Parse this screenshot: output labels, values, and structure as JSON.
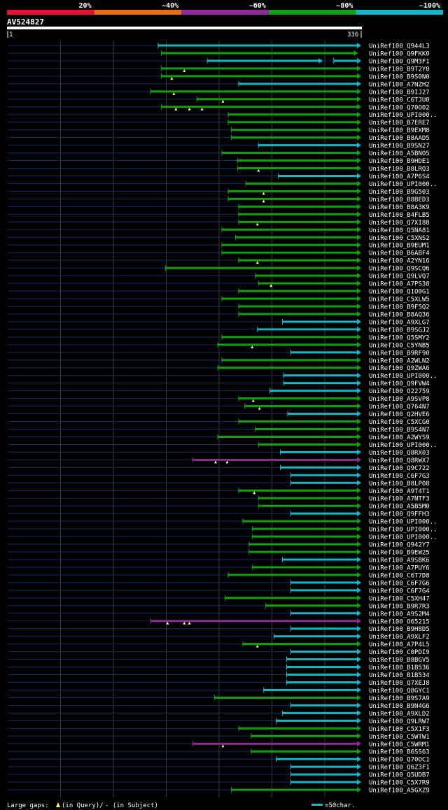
{
  "query": {
    "name": "AV524827",
    "start": "1",
    "end": "336",
    "length": 336
  },
  "legend_scale": [
    {
      "label": "20%",
      "color": "#e8112d"
    },
    {
      "label": "~40%",
      "color": "#e86d12"
    },
    {
      "label": "~60%",
      "color": "#8f2a9b"
    },
    {
      "label": "~80%",
      "color": "#11a012"
    },
    {
      "label": "~100%",
      "color": "#12b6c6"
    }
  ],
  "footer": {
    "gaps_label": "Large gaps:",
    "in_query": "(in Query)/",
    "in_subject": "- (in Subject)",
    "scale_label": "=50char."
  },
  "colors": {
    "green": "#11a012",
    "cyan": "#12b6c6",
    "purple": "#8f2a9b",
    "dim": "#1a2a66",
    "marker": "#ffff66"
  },
  "chart_data": {
    "type": "alignment-overview",
    "x_range": [
      1,
      336
    ],
    "hits": [
      {
        "name": "UniRef100_Q944L3",
        "start": 145,
        "end": 336,
        "color": "cyan",
        "gaps": []
      },
      {
        "name": "UniRef100_Q9FKK0",
        "start": 148,
        "end": 333,
        "color": "green",
        "gaps": []
      },
      {
        "name": "UniRef100_Q9M3F1",
        "start": 192,
        "end": 336,
        "color": "cyan",
        "gaps": [],
        "breaks": [
          [
            302,
            313
          ]
        ]
      },
      {
        "name": "UniRef100_B9T2Y0",
        "start": 148,
        "end": 336,
        "color": "green",
        "gaps": [
          170
        ]
      },
      {
        "name": "UniRef100_B9S0N0",
        "start": 148,
        "end": 336,
        "color": "green",
        "gaps": [
          158
        ]
      },
      {
        "name": "UniRef100_A7NZH2",
        "start": 222,
        "end": 336,
        "color": "cyan",
        "gaps": []
      },
      {
        "name": "UniRef100_B9IJ27",
        "start": 138,
        "end": 336,
        "color": "green",
        "gaps": [
          160
        ]
      },
      {
        "name": "UniRef100_C6TJU0",
        "start": 182,
        "end": 336,
        "color": "green",
        "gaps": [
          207
        ]
      },
      {
        "name": "UniRef100_Q70O02",
        "start": 148,
        "end": 336,
        "color": "green",
        "gaps": [
          162,
          175,
          187
        ]
      },
      {
        "name": "UniRef100_UPI000..",
        "start": 212,
        "end": 336,
        "color": "green",
        "gaps": []
      },
      {
        "name": "UniRef100_B7ERE7",
        "start": 212,
        "end": 336,
        "color": "green",
        "gaps": []
      },
      {
        "name": "UniRef100_B9EXM8",
        "start": 215,
        "end": 336,
        "color": "green",
        "gaps": []
      },
      {
        "name": "UniRef100_B8AAD5",
        "start": 215,
        "end": 336,
        "color": "green",
        "gaps": []
      },
      {
        "name": "UniRef100_B9SN27",
        "start": 241,
        "end": 336,
        "color": "cyan",
        "gaps": []
      },
      {
        "name": "UniRef100_A5BNO5",
        "start": 206,
        "end": 336,
        "color": "green",
        "gaps": []
      },
      {
        "name": "UniRef100_B9HDE1",
        "start": 221,
        "end": 336,
        "color": "green",
        "gaps": []
      },
      {
        "name": "UniRef100_B8LRQ3",
        "start": 221,
        "end": 336,
        "color": "green",
        "gaps": [
          241
        ]
      },
      {
        "name": "UniRef100_A7P6S4",
        "start": 260,
        "end": 336,
        "color": "cyan",
        "gaps": []
      },
      {
        "name": "UniRef100_UPI000..",
        "start": 229,
        "end": 336,
        "color": "green",
        "gaps": []
      },
      {
        "name": "UniRef100_B9G503",
        "start": 212,
        "end": 336,
        "color": "green",
        "gaps": [
          246
        ]
      },
      {
        "name": "UniRef100_B8BED3",
        "start": 212,
        "end": 336,
        "color": "green",
        "gaps": [
          246
        ]
      },
      {
        "name": "UniRef100_B8A3K9",
        "start": 222,
        "end": 336,
        "color": "green",
        "gaps": []
      },
      {
        "name": "UniRef100_B4FLB5",
        "start": 222,
        "end": 336,
        "color": "green",
        "gaps": []
      },
      {
        "name": "UniRef100_Q7XI88",
        "start": 222,
        "end": 336,
        "color": "green",
        "gaps": [
          240
        ]
      },
      {
        "name": "UniRef100_Q5NA81",
        "start": 206,
        "end": 336,
        "color": "green",
        "gaps": []
      },
      {
        "name": "UniRef100_C5XNS2",
        "start": 219,
        "end": 336,
        "color": "green",
        "gaps": []
      },
      {
        "name": "UniRef100_B9EUM1",
        "start": 206,
        "end": 336,
        "color": "green",
        "gaps": []
      },
      {
        "name": "UniRef100_B6ABF4",
        "start": 206,
        "end": 336,
        "color": "green",
        "gaps": []
      },
      {
        "name": "UniRef100_A2YN16",
        "start": 222,
        "end": 336,
        "color": "green",
        "gaps": [
          240
        ]
      },
      {
        "name": "UniRef100_Q9SCQ6",
        "start": 152,
        "end": 336,
        "color": "green",
        "gaps": []
      },
      {
        "name": "UniRef100_Q9LVQ7",
        "start": 238,
        "end": 336,
        "color": "green",
        "gaps": []
      },
      {
        "name": "UniRef100_A7PS38",
        "start": 241,
        "end": 336,
        "color": "green",
        "gaps": [
          253
        ]
      },
      {
        "name": "UniRef100_Q1O0G1",
        "start": 222,
        "end": 336,
        "color": "green",
        "gaps": []
      },
      {
        "name": "UniRef100_C5XLW5",
        "start": 206,
        "end": 336,
        "color": "green",
        "gaps": []
      },
      {
        "name": "UniRef100_B9F5Q2",
        "start": 222,
        "end": 336,
        "color": "green",
        "gaps": []
      },
      {
        "name": "UniRef100_B8AQ36",
        "start": 222,
        "end": 336,
        "color": "green",
        "gaps": []
      },
      {
        "name": "UniRef100_A9XLG7",
        "start": 264,
        "end": 336,
        "color": "cyan",
        "gaps": []
      },
      {
        "name": "UniRef100_B9SGJ2",
        "start": 240,
        "end": 336,
        "color": "cyan",
        "gaps": []
      },
      {
        "name": "UniRef100_Q5SMY2",
        "start": 206,
        "end": 336,
        "color": "green",
        "gaps": []
      },
      {
        "name": "UniRef100_C5YNB5",
        "start": 202,
        "end": 336,
        "color": "green",
        "gaps": [
          235
        ]
      },
      {
        "name": "UniRef100_B9RF90",
        "start": 272,
        "end": 336,
        "color": "cyan",
        "gaps": []
      },
      {
        "name": "UniRef100_A2WLN2",
        "start": 206,
        "end": 336,
        "color": "green",
        "gaps": []
      },
      {
        "name": "UniRef100_Q9ZWA6",
        "start": 202,
        "end": 336,
        "color": "green",
        "gaps": []
      },
      {
        "name": "UniRef100_UPI000..",
        "start": 265,
        "end": 336,
        "color": "cyan",
        "gaps": []
      },
      {
        "name": "UniRef100_Q9FVW4",
        "start": 265,
        "end": 336,
        "color": "cyan",
        "gaps": []
      },
      {
        "name": "UniRef100_O22759",
        "start": 252,
        "end": 336,
        "color": "cyan",
        "gaps": []
      },
      {
        "name": "UniRef100_A9SVP8",
        "start": 222,
        "end": 336,
        "color": "green",
        "gaps": [
          236
        ]
      },
      {
        "name": "UniRef100_Q764N7",
        "start": 228,
        "end": 336,
        "color": "green",
        "gaps": [
          242
        ]
      },
      {
        "name": "UniRef100_Q2HVE6",
        "start": 269,
        "end": 336,
        "color": "cyan",
        "gaps": []
      },
      {
        "name": "UniRef100_C5XCG0",
        "start": 222,
        "end": 336,
        "color": "green",
        "gaps": []
      },
      {
        "name": "UniRef100_B9S4N7",
        "start": 238,
        "end": 336,
        "color": "green",
        "gaps": []
      },
      {
        "name": "UniRef100_A2WYS9",
        "start": 202,
        "end": 336,
        "color": "green",
        "gaps": []
      },
      {
        "name": "UniRef100_UPI000..",
        "start": 241,
        "end": 336,
        "color": "green",
        "gaps": []
      },
      {
        "name": "UniRef100_Q8RX03",
        "start": 262,
        "end": 336,
        "color": "cyan",
        "gaps": []
      },
      {
        "name": "UniRef100_Q8RWX7",
        "start": 178,
        "end": 336,
        "color": "purple",
        "gaps": [
          200,
          211
        ]
      },
      {
        "name": "UniRef100_Q9C722",
        "start": 262,
        "end": 336,
        "color": "cyan",
        "gaps": []
      },
      {
        "name": "UniRef100_C6F7G3",
        "start": 272,
        "end": 336,
        "color": "cyan",
        "gaps": []
      },
      {
        "name": "UniRef100_B8LP08",
        "start": 272,
        "end": 336,
        "color": "cyan",
        "gaps": []
      },
      {
        "name": "UniRef100_A9T4T1",
        "start": 222,
        "end": 336,
        "color": "green",
        "gaps": [
          237
        ]
      },
      {
        "name": "UniRef100_A7NTF3",
        "start": 241,
        "end": 336,
        "color": "green",
        "gaps": []
      },
      {
        "name": "UniRef100_A5B5M0",
        "start": 241,
        "end": 336,
        "color": "green",
        "gaps": []
      },
      {
        "name": "UniRef100_Q9FFH3",
        "start": 272,
        "end": 336,
        "color": "cyan",
        "gaps": []
      },
      {
        "name": "UniRef100_UPI000..",
        "start": 226,
        "end": 336,
        "color": "green",
        "gaps": []
      },
      {
        "name": "UniRef100_UPI000..",
        "start": 235,
        "end": 336,
        "color": "green",
        "gaps": []
      },
      {
        "name": "UniRef100_UPI000..",
        "start": 235,
        "end": 336,
        "color": "green",
        "gaps": []
      },
      {
        "name": "UniRef100_Q942Y7",
        "start": 232,
        "end": 336,
        "color": "green",
        "gaps": []
      },
      {
        "name": "UniRef100_B9EW25",
        "start": 232,
        "end": 336,
        "color": "green",
        "gaps": []
      },
      {
        "name": "UniRef100_A9SBK6",
        "start": 264,
        "end": 336,
        "color": "cyan",
        "gaps": []
      },
      {
        "name": "UniRef100_A7PUY6",
        "start": 235,
        "end": 336,
        "color": "green",
        "gaps": []
      },
      {
        "name": "UniRef100_C6T7D8",
        "start": 212,
        "end": 336,
        "color": "green",
        "gaps": []
      },
      {
        "name": "UniRef100_C6F7G6",
        "start": 272,
        "end": 336,
        "color": "cyan",
        "gaps": []
      },
      {
        "name": "UniRef100_C6F7G4",
        "start": 272,
        "end": 336,
        "color": "cyan",
        "gaps": []
      },
      {
        "name": "UniRef100_C5XH47",
        "start": 209,
        "end": 336,
        "color": "green",
        "gaps": []
      },
      {
        "name": "UniRef100_B9R7R3",
        "start": 248,
        "end": 336,
        "color": "green",
        "gaps": []
      },
      {
        "name": "UniRef100_A9S2M4",
        "start": 272,
        "end": 336,
        "color": "cyan",
        "gaps": []
      },
      {
        "name": "UniRef100_O65215",
        "start": 138,
        "end": 336,
        "color": "purple",
        "gaps": [
          154,
          170,
          175
        ]
      },
      {
        "name": "UniRef100_B9H8D5",
        "start": 272,
        "end": 336,
        "color": "cyan",
        "gaps": []
      },
      {
        "name": "UniRef100_A9XLF2",
        "start": 256,
        "end": 336,
        "color": "cyan",
        "gaps": []
      },
      {
        "name": "UniRef100_A7P4L5",
        "start": 226,
        "end": 336,
        "color": "green",
        "gaps": [
          240
        ]
      },
      {
        "name": "UniRef100_C0PDI9",
        "start": 272,
        "end": 336,
        "color": "cyan",
        "gaps": []
      },
      {
        "name": "UniRef100_B8BGV5",
        "start": 268,
        "end": 336,
        "color": "cyan",
        "gaps": []
      },
      {
        "name": "UniRef100_B1B536",
        "start": 268,
        "end": 336,
        "color": "cyan",
        "gaps": []
      },
      {
        "name": "UniRef100_B1B534",
        "start": 268,
        "end": 336,
        "color": "cyan",
        "gaps": []
      },
      {
        "name": "UniRef100_Q7XEJ8",
        "start": 268,
        "end": 336,
        "color": "cyan",
        "gaps": []
      },
      {
        "name": "UniRef100_Q8GYC1",
        "start": 246,
        "end": 336,
        "color": "cyan",
        "gaps": []
      },
      {
        "name": "UniRef100_B9S7A9",
        "start": 199,
        "end": 336,
        "color": "green",
        "gaps": []
      },
      {
        "name": "UniRef100_B9N4G6",
        "start": 272,
        "end": 336,
        "color": "cyan",
        "gaps": []
      },
      {
        "name": "UniRef100_A9XLD2",
        "start": 264,
        "end": 336,
        "color": "cyan",
        "gaps": []
      },
      {
        "name": "UniRef100_Q9LRW7",
        "start": 258,
        "end": 336,
        "color": "cyan",
        "gaps": []
      },
      {
        "name": "UniRef100_C5X1F3",
        "start": 222,
        "end": 336,
        "color": "green",
        "gaps": []
      },
      {
        "name": "UniRef100_C5WTW1",
        "start": 234,
        "end": 336,
        "color": "green",
        "gaps": []
      },
      {
        "name": "UniRef100_C5WRM1",
        "start": 178,
        "end": 336,
        "color": "purple",
        "gaps": [
          207
        ]
      },
      {
        "name": "UniRef100_B6SS63",
        "start": 234,
        "end": 336,
        "color": "green",
        "gaps": []
      },
      {
        "name": "UniRef100_Q70OC1",
        "start": 258,
        "end": 336,
        "color": "cyan",
        "gaps": []
      },
      {
        "name": "UniRef100_Q6Z3F1",
        "start": 272,
        "end": 336,
        "color": "cyan",
        "gaps": []
      },
      {
        "name": "UniRef100_Q5UDB7",
        "start": 272,
        "end": 336,
        "color": "cyan",
        "gaps": []
      },
      {
        "name": "UniRef100_C5X7R9",
        "start": 272,
        "end": 336,
        "color": "cyan",
        "gaps": []
      },
      {
        "name": "UniRef100_A5GXZ9",
        "start": 215,
        "end": 336,
        "color": "green",
        "gaps": []
      }
    ]
  }
}
